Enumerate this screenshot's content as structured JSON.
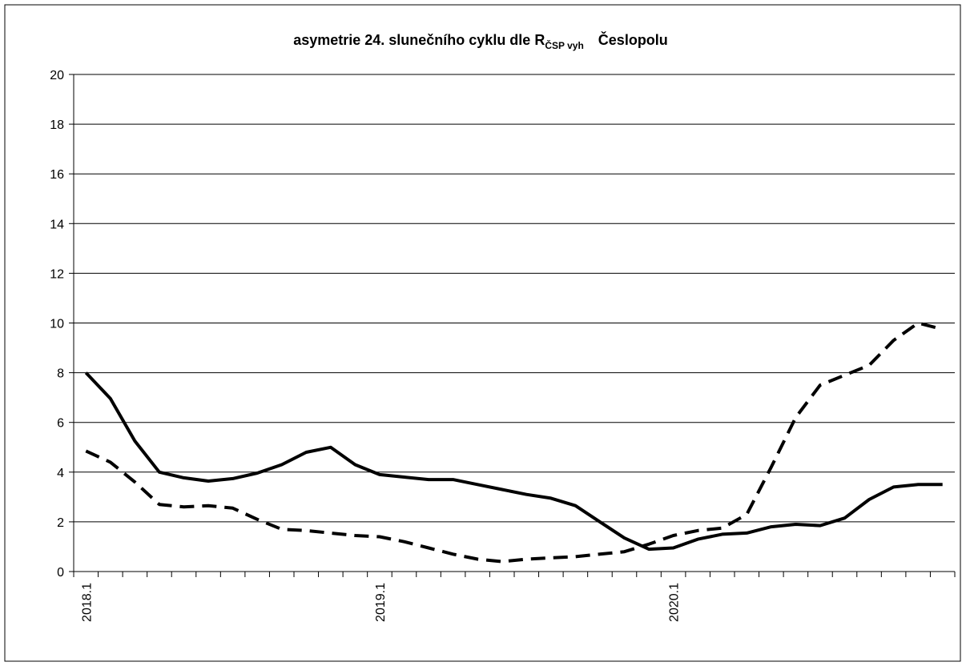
{
  "chart_data": {
    "type": "line",
    "title": "asymetrie 24. slunečního cyklu dle R",
    "title_subscript": "ČSP vyh",
    "title_suffix": "Česlopolu",
    "categories": [
      "2018.1",
      null,
      null,
      null,
      null,
      null,
      null,
      null,
      null,
      null,
      null,
      null,
      "2019.1",
      null,
      null,
      null,
      null,
      null,
      null,
      null,
      null,
      null,
      null,
      null,
      "2020.1",
      null,
      null,
      null,
      null,
      null,
      null,
      null,
      null,
      null,
      null,
      null
    ],
    "series": [
      {
        "color": "#000000",
        "dash": "solid",
        "values": [
          8.0,
          6.96,
          5.25,
          4.0,
          3.77,
          3.64,
          3.74,
          3.96,
          4.3,
          4.8,
          5.0,
          4.3,
          3.9,
          3.8,
          3.7,
          3.7,
          3.5,
          3.3,
          3.1,
          2.95,
          2.65,
          2.0,
          1.35,
          0.9,
          0.95,
          1.3,
          1.5,
          1.55,
          1.8,
          1.9,
          1.85,
          2.15,
          2.9,
          3.4,
          3.5,
          3.5
        ]
      },
      {
        "color": "#000000",
        "dash": "dashed",
        "values": [
          4.85,
          4.4,
          3.6,
          2.7,
          2.6,
          2.65,
          2.55,
          2.1,
          1.7,
          1.65,
          1.55,
          1.45,
          1.4,
          1.2,
          0.95,
          0.7,
          0.5,
          0.4,
          0.5,
          0.55,
          0.6,
          0.7,
          0.8,
          1.1,
          1.45,
          1.65,
          1.75,
          2.3,
          4.2,
          6.2,
          7.5,
          7.9,
          8.3,
          9.3,
          10.0,
          9.75
        ]
      }
    ],
    "ylim": [
      0,
      20
    ],
    "yticks": [
      0,
      2,
      4,
      6,
      8,
      10,
      12,
      14,
      16,
      18,
      20
    ],
    "grid": true
  }
}
